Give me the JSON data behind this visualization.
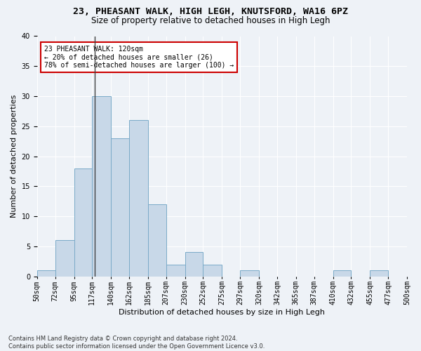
{
  "title1": "23, PHEASANT WALK, HIGH LEGH, KNUTSFORD, WA16 6PZ",
  "title2": "Size of property relative to detached houses in High Legh",
  "xlabel": "Distribution of detached houses by size in High Legh",
  "ylabel": "Number of detached properties",
  "bar_color": "#c8d8e8",
  "bar_edge_color": "#7aaac8",
  "annotation_line_color": "#404040",
  "annotation_box_color": "#cc0000",
  "background_color": "#eef2f7",
  "footer1": "Contains HM Land Registry data © Crown copyright and database right 2024.",
  "footer2": "Contains public sector information licensed under the Open Government Licence v3.0.",
  "bin_edges": [
    50,
    72,
    95,
    117,
    140,
    162,
    185,
    207,
    230,
    252,
    275,
    297,
    320,
    342,
    365,
    387,
    410,
    432,
    455,
    477,
    500
  ],
  "bin_labels": [
    "50sqm",
    "72sqm",
    "95sqm",
    "117sqm",
    "140sqm",
    "162sqm",
    "185sqm",
    "207sqm",
    "230sqm",
    "252sqm",
    "275sqm",
    "297sqm",
    "320sqm",
    "342sqm",
    "365sqm",
    "387sqm",
    "410sqm",
    "432sqm",
    "455sqm",
    "477sqm",
    "500sqm"
  ],
  "counts": [
    1,
    6,
    18,
    30,
    23,
    26,
    12,
    2,
    4,
    2,
    0,
    1,
    0,
    0,
    0,
    0,
    1,
    0,
    1,
    0
  ],
  "property_size": 120,
  "annotation_text_line1": "23 PHEASANT WALK: 120sqm",
  "annotation_text_line2": "← 20% of detached houses are smaller (26)",
  "annotation_text_line3": "78% of semi-detached houses are larger (100) →",
  "ylim": [
    0,
    40
  ],
  "yticks": [
    0,
    5,
    10,
    15,
    20,
    25,
    30,
    35,
    40
  ],
  "property_line_x": 120,
  "title1_fontsize": 9.5,
  "title2_fontsize": 8.5,
  "xlabel_fontsize": 8,
  "ylabel_fontsize": 8,
  "footer_fontsize": 6,
  "tick_fontsize": 7,
  "annot_fontsize": 7
}
